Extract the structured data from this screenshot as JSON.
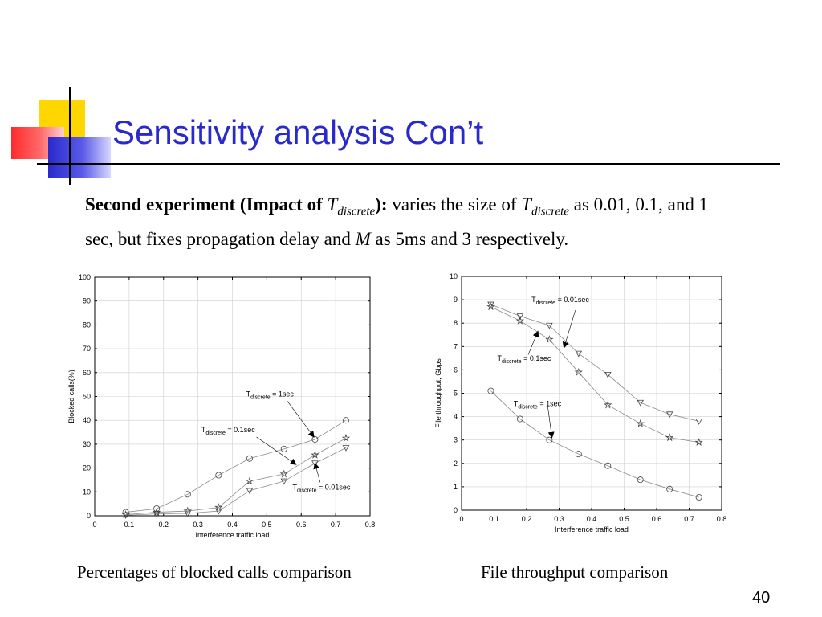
{
  "slide": {
    "title": "Sensitivity analysis Con’t",
    "body": {
      "bold_lead": "Second experiment (Impact of ",
      "t_symbol": "T",
      "t_subscript": "discrete",
      "bold_close": "):",
      "text_1": " varies the size of ",
      "text_2": " as 0.01,  0.1, and 1 sec,  but fixes propagation delay and ",
      "m_symbol": "M",
      "text_3": " as 5ms and 3 respectively."
    },
    "captions": {
      "left": "Percentages of blocked calls comparison",
      "right": "File throughput comparison"
    },
    "page_number": "40"
  },
  "chart_data": [
    {
      "type": "line",
      "xlabel": "Interference traffic load",
      "ylabel": "Blocked calls(%)",
      "xlim": [
        0,
        0.8
      ],
      "ylim": [
        0,
        100
      ],
      "xticks": [
        "0",
        "0.1",
        "0.2",
        "0.3",
        "0.4",
        "0.5",
        "0.6",
        "0.7",
        "0.8"
      ],
      "yticks": [
        "0",
        "10",
        "20",
        "30",
        "40",
        "50",
        "60",
        "70",
        "80",
        "90",
        "100"
      ],
      "grid": true,
      "x": [
        0.09,
        0.18,
        0.27,
        0.36,
        0.45,
        0.55,
        0.64,
        0.73
      ],
      "series": [
        {
          "marker": "circle",
          "values": [
            1.5,
            3,
            9,
            17,
            24,
            28,
            32,
            40
          ]
        },
        {
          "marker": "star",
          "values": [
            0.5,
            1.5,
            2,
            3.5,
            14.5,
            17.5,
            25.5,
            32.5
          ]
        },
        {
          "marker": "triangle",
          "values": [
            0.2,
            0.8,
            1,
            2,
            10.5,
            14.5,
            22,
            28.5
          ]
        }
      ],
      "annotations": [
        {
          "main": "T",
          "sub": "discrete",
          "rest": " = 1sec",
          "label_at": [
            0.44,
            50
          ],
          "arrow_from": [
            0.56,
            48
          ],
          "arrow_to": [
            0.637,
            33
          ]
        },
        {
          "main": "T",
          "sub": "discrete",
          "rest": " = 0.1sec",
          "label_at": [
            0.31,
            35
          ],
          "arrow_from": [
            0.47,
            33
          ],
          "arrow_to": [
            0.585,
            21.5
          ]
        },
        {
          "main": "T",
          "sub": "discrete",
          "rest": " = 0.01sec",
          "label_at": [
            0.575,
            11
          ],
          "arrow_from": [
            0.655,
            14
          ],
          "arrow_to": [
            0.64,
            22
          ]
        }
      ]
    },
    {
      "type": "line",
      "xlabel": "Interference traffic load",
      "ylabel": "File throughput, Gbps",
      "xlim": [
        0,
        0.8
      ],
      "ylim": [
        0,
        10
      ],
      "xticks": [
        "0",
        "0.1",
        "0.2",
        "0.3",
        "0.4",
        "0.5",
        "0.6",
        "0.7",
        "0.8"
      ],
      "yticks": [
        "0",
        "1",
        "2",
        "3",
        "4",
        "5",
        "6",
        "7",
        "8",
        "9",
        "10"
      ],
      "grid": true,
      "x": [
        0.09,
        0.18,
        0.27,
        0.36,
        0.45,
        0.55,
        0.64,
        0.73
      ],
      "series": [
        {
          "marker": "triangle",
          "values": [
            8.8,
            8.3,
            7.9,
            6.7,
            5.8,
            4.6,
            4.1,
            3.8
          ]
        },
        {
          "marker": "star",
          "values": [
            8.7,
            8.1,
            7.3,
            5.9,
            4.5,
            3.7,
            3.1,
            2.9
          ]
        },
        {
          "marker": "circle",
          "values": [
            5.1,
            3.9,
            3.0,
            2.4,
            1.9,
            1.3,
            0.9,
            0.55
          ]
        }
      ],
      "annotations": [
        {
          "main": "T",
          "sub": "discrete",
          "rest": " = 0.01sec",
          "label_at": [
            0.215,
            8.9
          ],
          "arrow_from": [
            0.35,
            8.55
          ],
          "arrow_to": [
            0.315,
            6.95
          ]
        },
        {
          "main": "T",
          "sub": "discrete",
          "rest": " = 0.1sec",
          "label_at": [
            0.11,
            6.4
          ],
          "arrow_from": [
            0.205,
            6.65
          ],
          "arrow_to": [
            0.235,
            7.65
          ]
        },
        {
          "main": "T",
          "sub": "discrete",
          "rest": " = 1sec",
          "label_at": [
            0.16,
            4.45
          ],
          "arrow_from": [
            0.265,
            4.45
          ],
          "arrow_to": [
            0.278,
            3.1
          ]
        }
      ]
    }
  ]
}
